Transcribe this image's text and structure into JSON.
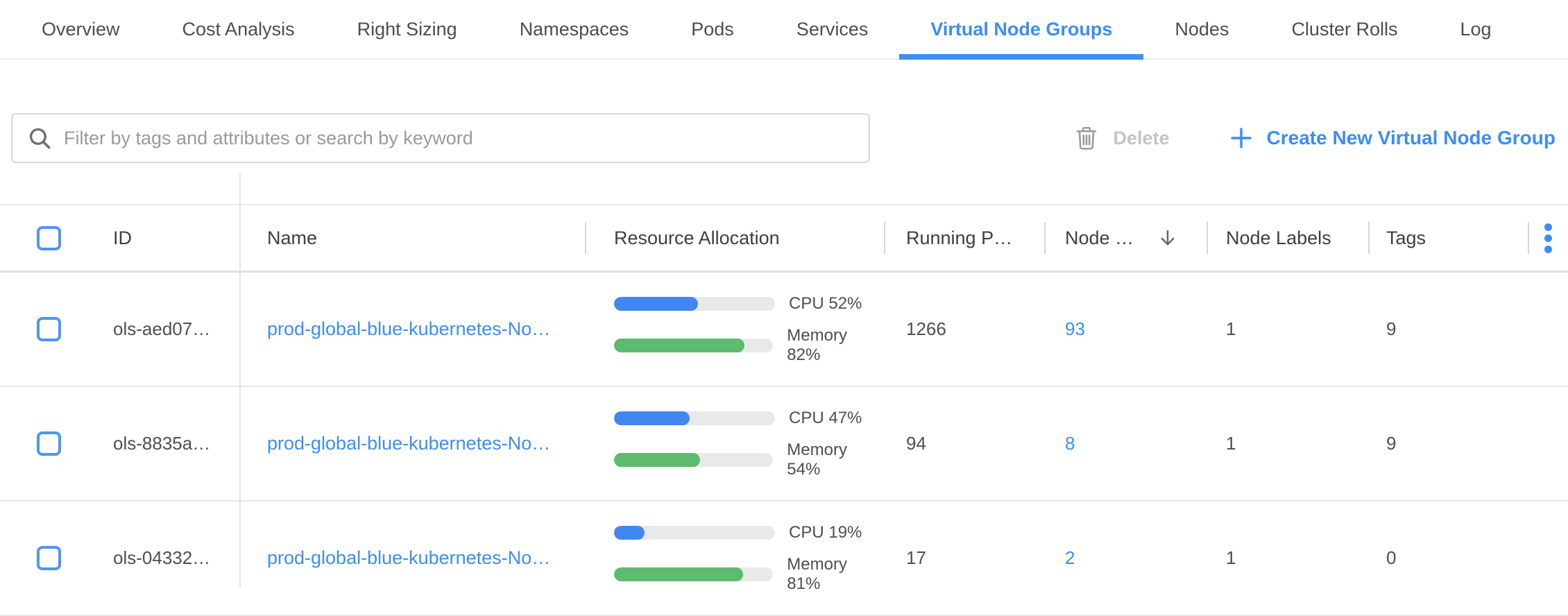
{
  "tabs": {
    "items": [
      {
        "label": "Overview",
        "active": false
      },
      {
        "label": "Cost Analysis",
        "active": false
      },
      {
        "label": "Right Sizing",
        "active": false
      },
      {
        "label": "Namespaces",
        "active": false
      },
      {
        "label": "Pods",
        "active": false
      },
      {
        "label": "Services",
        "active": false
      },
      {
        "label": "Virtual Node Groups",
        "active": true
      },
      {
        "label": "Nodes",
        "active": false
      },
      {
        "label": "Cluster Rolls",
        "active": false
      },
      {
        "label": "Log",
        "active": false
      }
    ]
  },
  "toolbar": {
    "search_placeholder": "Filter by tags and attributes or search by keyword",
    "delete_label": "Delete",
    "plus_symbol": "+",
    "create_label": "Create New Virtual Node Group"
  },
  "table": {
    "columns": {
      "id": "ID",
      "name": "Name",
      "resource_allocation": "Resource Allocation",
      "running_pods": "Running P…",
      "nodes": "Node …",
      "node_labels": "Node Labels",
      "tags": "Tags"
    },
    "sort": {
      "column": "nodes",
      "direction": "desc"
    },
    "rows": [
      {
        "id": "ols-aed07…",
        "name": "prod-global-blue-kubernetes-No…",
        "cpu_pct": 52,
        "memory_pct": 82,
        "cpu_label": "CPU 52%",
        "memory_label": "Memory 82%",
        "running_pods": "1266",
        "nodes": "93",
        "node_labels": "1",
        "tags": "9"
      },
      {
        "id": "ols-8835a…",
        "name": "prod-global-blue-kubernetes-No…",
        "cpu_pct": 47,
        "memory_pct": 54,
        "cpu_label": "CPU 47%",
        "memory_label": "Memory 54%",
        "running_pods": "94",
        "nodes": "8",
        "node_labels": "1",
        "tags": "9"
      },
      {
        "id": "ols-04332…",
        "name": "prod-global-blue-kubernetes-No…",
        "cpu_pct": 19,
        "memory_pct": 81,
        "cpu_label": "CPU 19%",
        "memory_label": "Memory 81%",
        "running_pods": "17",
        "nodes": "2",
        "node_labels": "1",
        "tags": "0"
      }
    ]
  },
  "icons": {
    "search": "magnifier",
    "delete": "trash-can",
    "create": "plus",
    "sort": "arrow-down",
    "column_menu": "vertical-ellipsis",
    "checkbox": "unchecked-square"
  },
  "colors": {
    "accent_blue": "#3d8df5",
    "bar_blue": "#4287f0",
    "bar_green": "#5cbb6e",
    "bar_track": "#e9e9e9",
    "disabled_text": "#c4c4c4",
    "icon_gray": "#9b9b9b",
    "border_gray": "#e3e3e3",
    "header_text": "#3f3f3f",
    "cell_text": "#4f4f4f",
    "placeholder": "#9a9a9a"
  }
}
